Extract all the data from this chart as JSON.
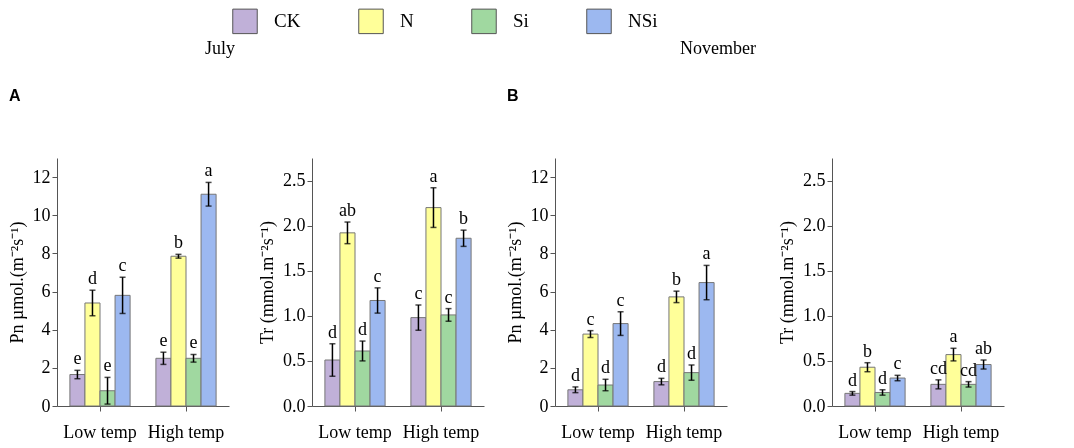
{
  "chart_data": [
    {
      "type": "bar",
      "title": "July",
      "annotations": [
        "A"
      ],
      "ylabel": "Pn µmol.(m⁻²s⁻¹)",
      "categories": [
        "Low temp",
        "High temp"
      ],
      "ylim": [
        0,
        13
      ],
      "yticks": [
        0,
        2,
        4,
        6,
        8,
        10,
        12
      ],
      "legend": "top",
      "series": [
        {
          "name": "CK",
          "color": "#c0b0d8",
          "values": [
            1.65,
            2.5
          ],
          "errors": [
            0.22,
            0.32
          ],
          "value_labels": [
            "e",
            "e"
          ]
        },
        {
          "name": "N",
          "color": "#ffff99",
          "values": [
            5.4,
            7.85
          ],
          "errors": [
            0.67,
            0.1
          ],
          "value_labels": [
            "d",
            "b"
          ]
        },
        {
          "name": "Si",
          "color": "#a0d8a0",
          "values": [
            0.8,
            2.5
          ],
          "errors": [
            0.7,
            0.2
          ],
          "value_labels": [
            "e",
            "e"
          ]
        },
        {
          "name": "NSi",
          "color": "#9cb8f0",
          "values": [
            5.8,
            11.1
          ],
          "errors": [
            0.95,
            0.62
          ],
          "value_labels": [
            "c",
            "a"
          ]
        }
      ]
    },
    {
      "type": "bar",
      "ylabel": "Tr (mmol.m⁻²s⁻¹)",
      "categories": [
        "Low temp",
        "High temp"
      ],
      "ylim": [
        0,
        2.75
      ],
      "yticks": [
        {
          "value": 0,
          "label": "0.0"
        },
        0.5,
        {
          "value": 1,
          "label": "1.0"
        },
        1.5,
        {
          "value": 2,
          "label": "2.0"
        },
        2.5
      ],
      "series": [
        {
          "color": "#c0b0d8",
          "values": [
            0.51,
            0.98
          ],
          "errors": [
            0.18,
            0.14
          ],
          "value_labels": [
            "d",
            "c"
          ]
        },
        {
          "color": "#ffff99",
          "values": [
            1.92,
            2.2
          ],
          "errors": [
            0.12,
            0.22
          ],
          "value_labels": [
            "ab",
            "a"
          ]
        },
        {
          "color": "#a0d8a0",
          "values": [
            0.61,
            1.01
          ],
          "errors": [
            0.11,
            0.07
          ],
          "value_labels": [
            "d",
            "c"
          ]
        },
        {
          "color": "#9cb8f0",
          "values": [
            1.17,
            1.86
          ],
          "errors": [
            0.14,
            0.09
          ],
          "value_labels": [
            "c",
            "b"
          ]
        }
      ]
    },
    {
      "type": "bar",
      "title": "November",
      "annotations": [
        "B"
      ],
      "ylabel": "Pn µmol.(m⁻²s⁻¹)",
      "categories": [
        "Low temp",
        "High temp"
      ],
      "ylim": [
        0,
        13
      ],
      "yticks": [
        0,
        2,
        4,
        6,
        8,
        10,
        12
      ],
      "series": [
        {
          "color": "#c0b0d8",
          "values": [
            0.85,
            1.28
          ],
          "errors": [
            0.15,
            0.17
          ],
          "value_labels": [
            "d",
            "d"
          ]
        },
        {
          "color": "#ffff99",
          "values": [
            3.77,
            5.72
          ],
          "errors": [
            0.18,
            0.3
          ],
          "value_labels": [
            "c",
            "b"
          ]
        },
        {
          "color": "#a0d8a0",
          "values": [
            1.1,
            1.75
          ],
          "errors": [
            0.3,
            0.4
          ],
          "value_labels": [
            "d",
            "d"
          ]
        },
        {
          "color": "#9cb8f0",
          "values": [
            4.32,
            6.47
          ],
          "errors": [
            0.62,
            0.9
          ],
          "value_labels": [
            "c",
            "a"
          ]
        }
      ]
    },
    {
      "type": "bar",
      "ylabel": "Tr (mmol.m⁻²s⁻¹)",
      "categories": [
        "Low temp",
        "High temp"
      ],
      "ylim": [
        0,
        2.75
      ],
      "yticks": [
        {
          "value": 0,
          "label": "0.0"
        },
        0.5,
        {
          "value": 1,
          "label": "1.0"
        },
        1.5,
        {
          "value": 2,
          "label": "2.0"
        },
        2.5
      ],
      "series": [
        {
          "color": "#c0b0d8",
          "values": [
            0.14,
            0.24
          ],
          "errors": [
            0.02,
            0.05
          ],
          "value_labels": [
            "d",
            "cd"
          ]
        },
        {
          "color": "#ffff99",
          "values": [
            0.43,
            0.57
          ],
          "errors": [
            0.05,
            0.07
          ],
          "value_labels": [
            "b",
            "a"
          ]
        },
        {
          "color": "#a0d8a0",
          "values": [
            0.15,
            0.24
          ],
          "errors": [
            0.03,
            0.03
          ],
          "value_labels": [
            "d",
            "cd"
          ]
        },
        {
          "color": "#9cb8f0",
          "values": [
            0.31,
            0.46
          ],
          "errors": [
            0.03,
            0.05
          ],
          "value_labels": [
            "c",
            "ab"
          ]
        }
      ]
    }
  ]
}
